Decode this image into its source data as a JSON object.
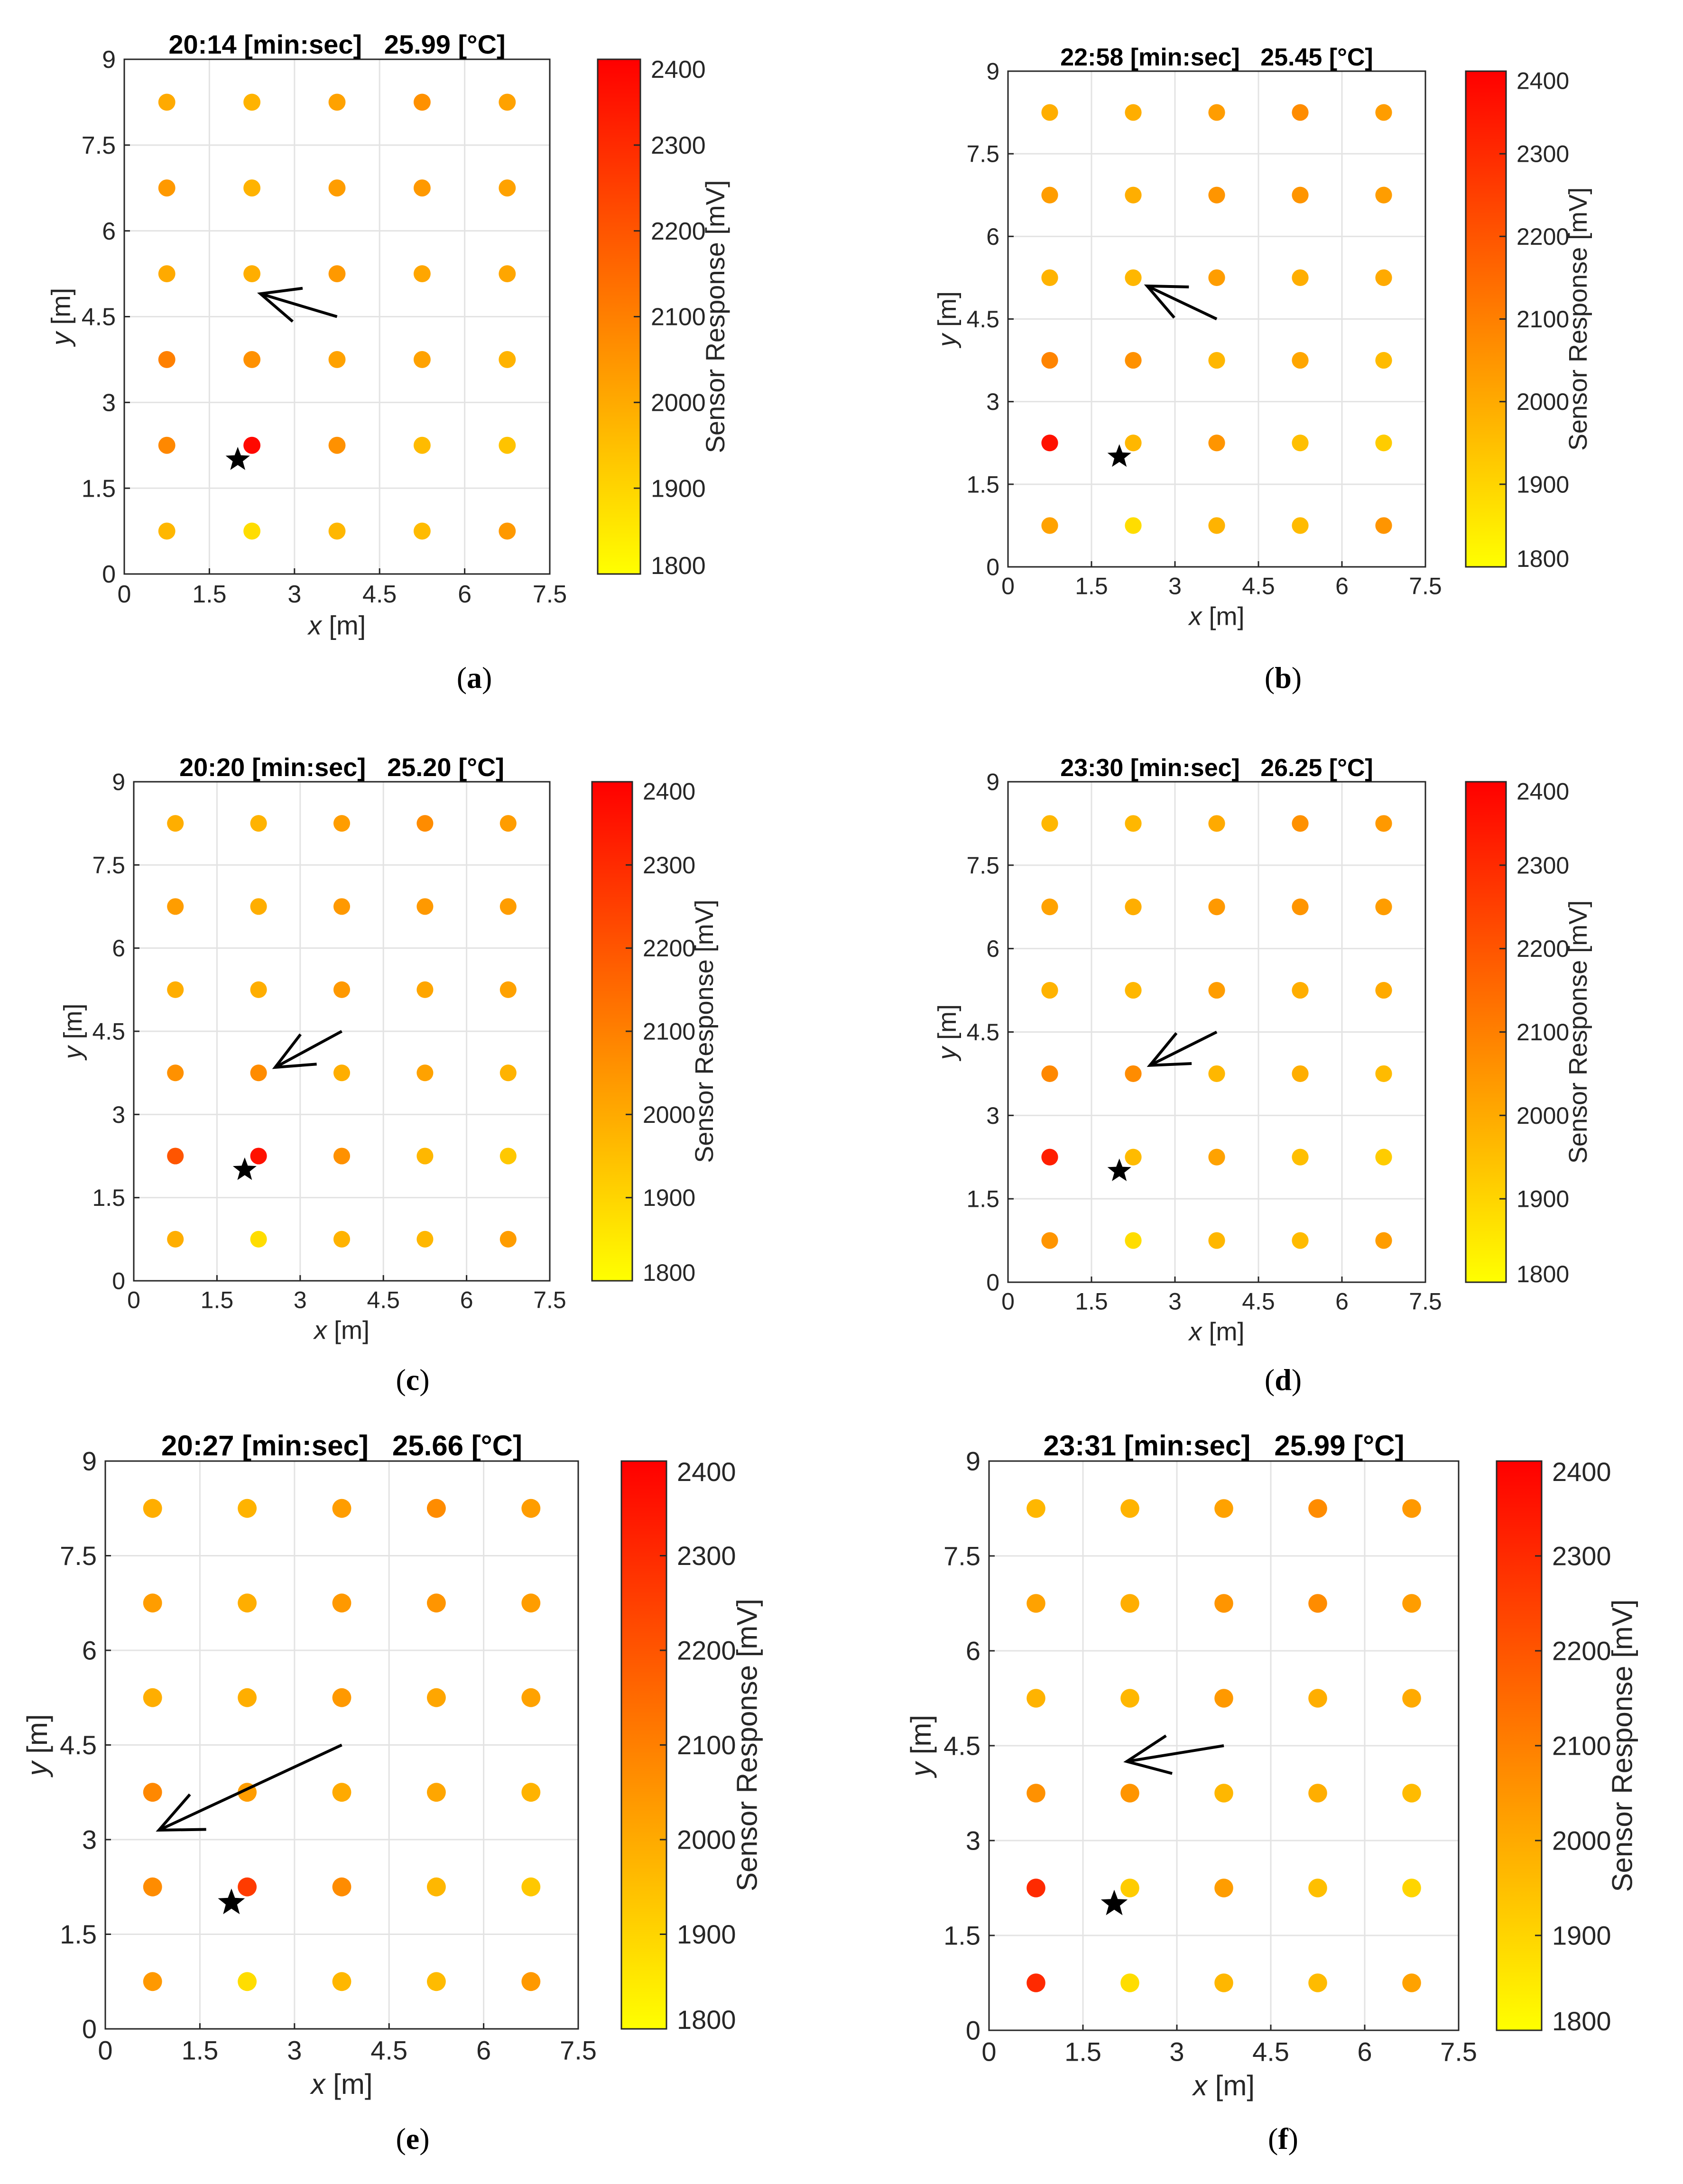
{
  "colorbar": {
    "label": "Sensor Response [mV]",
    "ticks": [
      "1800",
      "1900",
      "2000",
      "2100",
      "2200",
      "2300",
      "2400"
    ],
    "range": [
      1800,
      2400
    ],
    "colors": [
      "#ffff00",
      "#ffc400",
      "#ff8a00",
      "#ff0000"
    ]
  },
  "axes": {
    "xlabel_var": "x",
    "xlabel_unit": " [m]",
    "ylabel_var": "y",
    "ylabel_unit": " [m]",
    "xlim": [
      0,
      7.5
    ],
    "ylim": [
      0,
      9
    ],
    "xticks": [
      "0",
      "1.5",
      "3",
      "4.5",
      "6",
      "7.5"
    ],
    "yticks": [
      "0",
      "1.5",
      "3",
      "4.5",
      "6",
      "7.5",
      "9"
    ],
    "grid": true
  },
  "chart_data": [
    {
      "type": "scatter",
      "caption_open": "(",
      "caption_letter": "a",
      "caption_close": ")",
      "title": "20:14 [min:sec]   25.99 [°C]",
      "sensor_x": [
        0.75,
        2.25,
        3.75,
        5.25,
        6.75
      ],
      "sensor_y": [
        8.25,
        6.75,
        5.25,
        3.75,
        2.25,
        0.75
      ],
      "values": [
        [
          2000,
          1980,
          2020,
          2060,
          2020
        ],
        [
          2040,
          1980,
          2030,
          2040,
          2020
        ],
        [
          2000,
          1990,
          2040,
          2010,
          2010
        ],
        [
          2100,
          2060,
          2020,
          2020,
          1980
        ],
        [
          2080,
          2380,
          2060,
          1960,
          1940
        ],
        [
          1970,
          1880,
          1970,
          1960,
          2040
        ]
      ],
      "source": {
        "x": 2.0,
        "y": 2.0
      },
      "arrow": {
        "x0": 3.75,
        "y0": 4.5,
        "x1": 2.4,
        "y1": 4.9
      }
    },
    {
      "type": "scatter",
      "caption_open": "(",
      "caption_letter": "b",
      "caption_close": ")",
      "title": "22:58 [min:sec]   25.45 [°C]",
      "sensor_x": [
        0.75,
        2.25,
        3.75,
        5.25,
        6.75
      ],
      "sensor_y": [
        8.25,
        6.75,
        5.25,
        3.75,
        2.25,
        0.75
      ],
      "values": [
        [
          1990,
          1990,
          2030,
          2070,
          2030
        ],
        [
          2030,
          1990,
          2050,
          2050,
          2030
        ],
        [
          1980,
          1970,
          2030,
          1990,
          2000
        ],
        [
          2090,
          2060,
          1970,
          2010,
          1960
        ],
        [
          2360,
          1970,
          2050,
          1950,
          1920
        ],
        [
          2020,
          1880,
          1980,
          1960,
          2050
        ]
      ],
      "source": {
        "x": 2.0,
        "y": 2.0
      },
      "arrow": {
        "x0": 3.75,
        "y0": 4.5,
        "x1": 2.5,
        "y1": 5.1
      }
    },
    {
      "type": "scatter",
      "caption_open": "(",
      "caption_letter": "c",
      "caption_close": ")",
      "title": "20:20 [min:sec]   25.20 [°C]",
      "sensor_x": [
        0.75,
        2.25,
        3.75,
        5.25,
        6.75
      ],
      "sensor_y": [
        8.25,
        6.75,
        5.25,
        3.75,
        2.25,
        0.75
      ],
      "values": [
        [
          1990,
          1980,
          2030,
          2070,
          2030
        ],
        [
          2030,
          1990,
          2040,
          2040,
          2030
        ],
        [
          1990,
          1990,
          2040,
          2010,
          2020
        ],
        [
          2060,
          2070,
          1990,
          2020,
          1980
        ],
        [
          2200,
          2360,
          2060,
          1970,
          1930
        ],
        [
          1990,
          1880,
          1980,
          1970,
          2030
        ]
      ],
      "source": {
        "x": 2.0,
        "y": 2.0
      },
      "arrow": {
        "x0": 3.75,
        "y0": 4.5,
        "x1": 2.55,
        "y1": 3.85
      }
    },
    {
      "type": "scatter",
      "caption_open": "(",
      "caption_letter": "d",
      "caption_close": ")",
      "title": "23:30 [min:sec]   26.25 [°C]",
      "sensor_x": [
        0.75,
        2.25,
        3.75,
        5.25,
        6.75
      ],
      "sensor_y": [
        8.25,
        6.75,
        5.25,
        3.75,
        2.25,
        0.75
      ],
      "values": [
        [
          1970,
          1970,
          2000,
          2060,
          2040
        ],
        [
          2020,
          1990,
          2040,
          2050,
          2030
        ],
        [
          1980,
          1970,
          2030,
          1990,
          2000
        ],
        [
          2080,
          2070,
          1970,
          1990,
          1960
        ],
        [
          2330,
          1960,
          2020,
          1950,
          1920
        ],
        [
          2050,
          1880,
          1970,
          1960,
          2030
        ]
      ],
      "source": {
        "x": 2.0,
        "y": 2.0
      },
      "arrow": {
        "x0": 3.75,
        "y0": 4.5,
        "x1": 2.55,
        "y1": 3.9
      }
    },
    {
      "type": "scatter",
      "caption_open": "(",
      "caption_letter": "e",
      "caption_close": ")",
      "title": "20:27 [min:sec]   25.66 [°C]",
      "sensor_x": [
        0.75,
        2.25,
        3.75,
        5.25,
        6.75
      ],
      "sensor_y": [
        8.25,
        6.75,
        5.25,
        3.75,
        2.25,
        0.75
      ],
      "values": [
        [
          1990,
          1980,
          2030,
          2070,
          2030
        ],
        [
          2030,
          1990,
          2040,
          2050,
          2030
        ],
        [
          1990,
          1990,
          2040,
          2010,
          2020
        ],
        [
          2080,
          2030,
          2000,
          2010,
          1980
        ],
        [
          2070,
          2260,
          2070,
          1970,
          1930
        ],
        [
          2040,
          1880,
          1970,
          1960,
          2040
        ]
      ],
      "source": {
        "x": 2.0,
        "y": 2.0
      },
      "arrow": {
        "x0": 3.75,
        "y0": 4.5,
        "x1": 0.85,
        "y1": 3.15
      }
    },
    {
      "type": "scatter",
      "caption_open": "(",
      "caption_letter": "f",
      "caption_close": ")",
      "title": "23:31 [min:sec]   25.99 [°C]",
      "sensor_x": [
        0.75,
        2.25,
        3.75,
        5.25,
        6.75
      ],
      "sensor_y": [
        8.25,
        6.75,
        5.25,
        3.75,
        2.25,
        0.75
      ],
      "values": [
        [
          1970,
          1980,
          2020,
          2070,
          2040
        ],
        [
          2020,
          1990,
          2050,
          2070,
          2030
        ],
        [
          1980,
          1970,
          2040,
          1990,
          2000
        ],
        [
          2060,
          2050,
          1970,
          1990,
          1960
        ],
        [
          2300,
          1920,
          2030,
          1950,
          1900
        ],
        [
          2300,
          1880,
          1970,
          1960,
          2020
        ]
      ],
      "source": {
        "x": 2.0,
        "y": 2.0
      },
      "arrow": {
        "x0": 3.75,
        "y0": 4.5,
        "x1": 2.2,
        "y1": 4.25
      }
    }
  ]
}
